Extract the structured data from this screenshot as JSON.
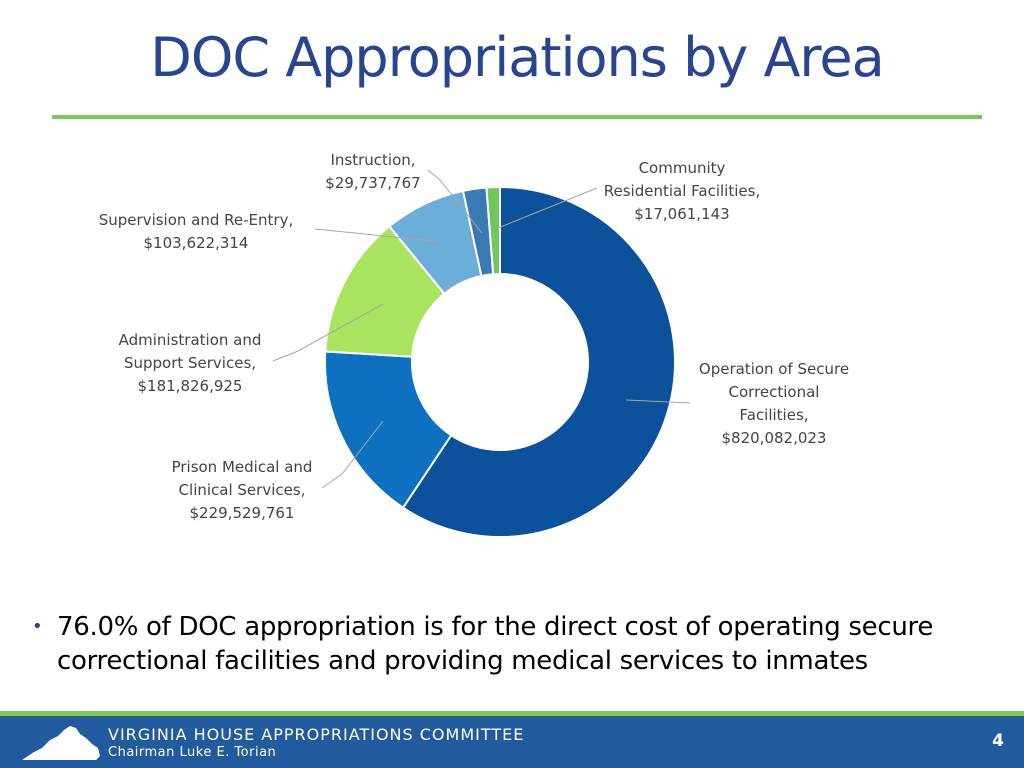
{
  "slide": {
    "title": "DOC Appropriations by Area",
    "bullet": "76.0% of DOC appropriation is for the direct cost of operating secure correctional facilities and providing medical services to inmates",
    "page_number": "4"
  },
  "footer": {
    "organization": "VIRGINIA HOUSE APPROPRIATIONS COMMITTEE",
    "chairman": "Chairman Luke E. Torian"
  },
  "colors": {
    "title": "#27468f",
    "accent_green": "#7fc653",
    "footer_blue": "#225a9e"
  },
  "chart_data": {
    "type": "pie",
    "style": "donut",
    "slices": [
      {
        "name": "Operation of Secure Correctional Facilities",
        "value": 820082023,
        "label_lines": [
          "Operation of Secure",
          "Correctional",
          "Facilities,",
          "$820,082,023"
        ],
        "color": "#0b519b"
      },
      {
        "name": "Prison Medical and Clinical Services",
        "value": 229529761,
        "label_lines": [
          "Prison Medical and",
          "Clinical Services,",
          "$229,529,761"
        ],
        "color": "#0d70c0"
      },
      {
        "name": "Administration and Support Services",
        "value": 181826925,
        "label_lines": [
          "Administration and",
          "Support Services,",
          "$181,826,925"
        ],
        "color": "#a9e35f"
      },
      {
        "name": "Supervision and Re-Entry",
        "value": 103622314,
        "label_lines": [
          "Supervision and Re-Entry,",
          "$103,622,314"
        ],
        "color": "#6aaed9"
      },
      {
        "name": "Instruction",
        "value": 29737767,
        "label_lines": [
          "Instruction,",
          "$29,737,767"
        ],
        "color": "#3b79b4"
      },
      {
        "name": "Community Residential Facilities",
        "value": 17061143,
        "label_lines": [
          "Community",
          "Residential Facilities,",
          "$17,061,143"
        ],
        "color": "#72c55a"
      }
    ],
    "legend": "none"
  }
}
